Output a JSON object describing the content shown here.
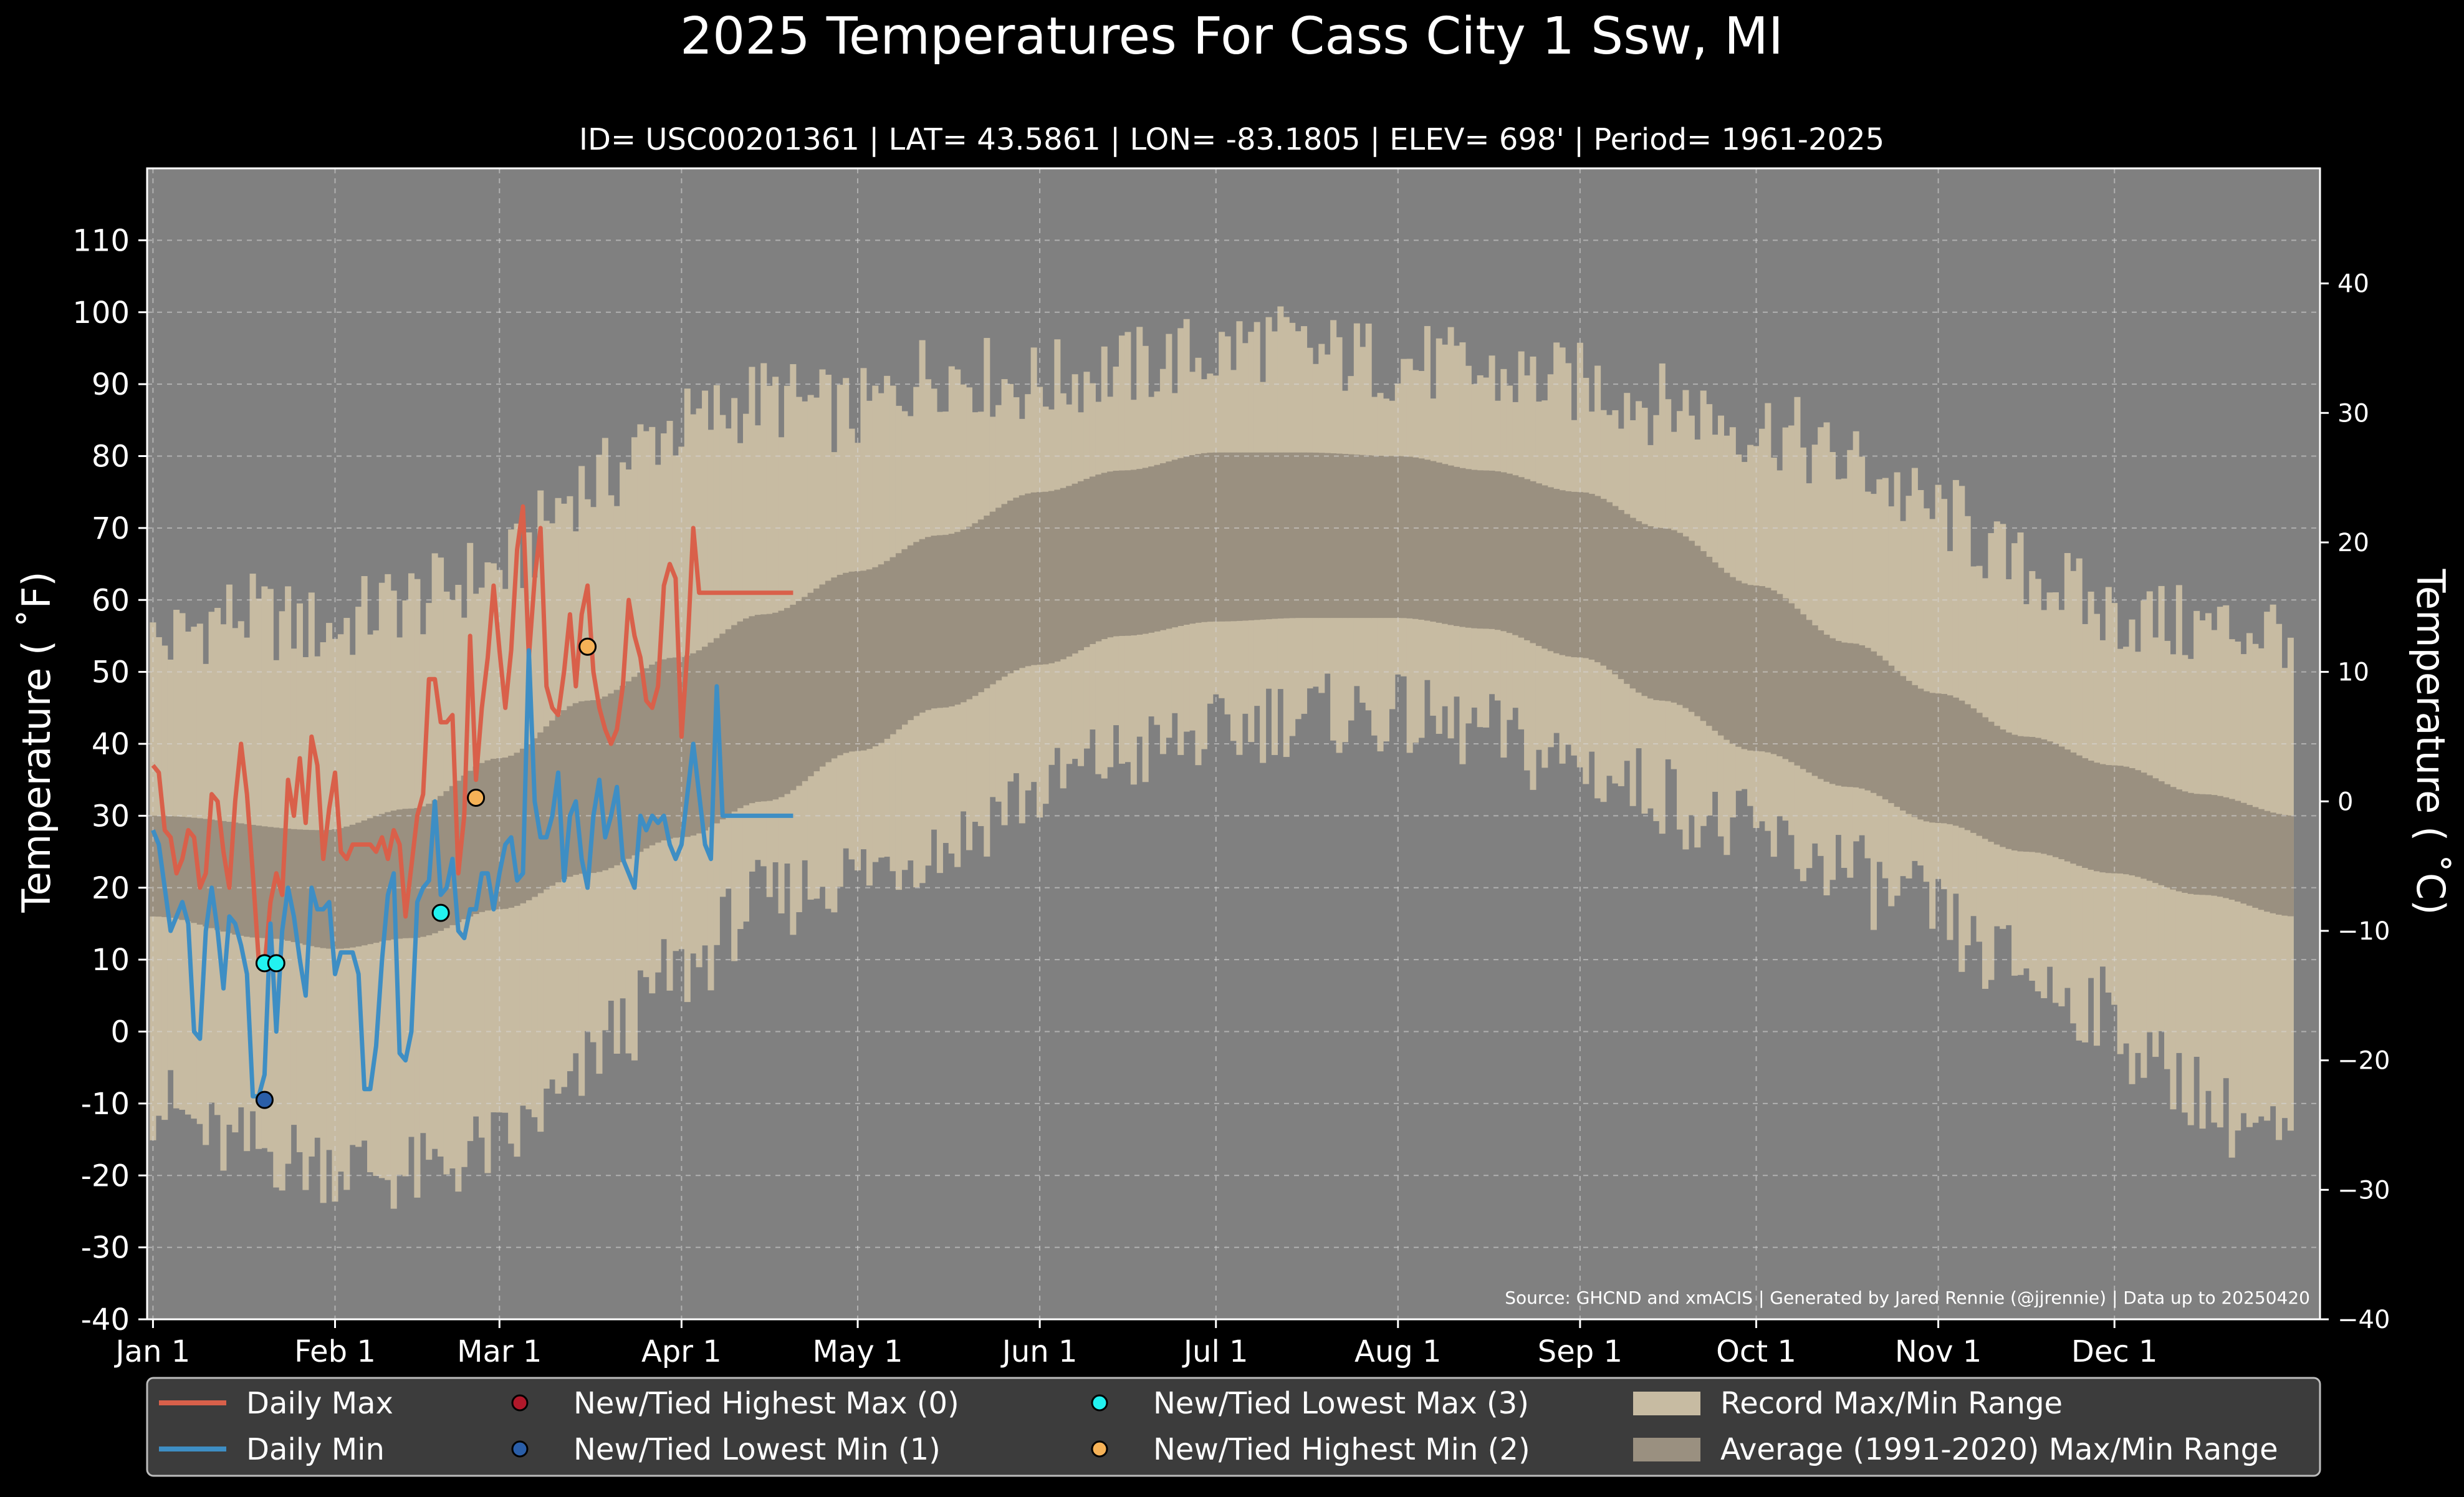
{
  "title": "2025 Temperatures For Cass City 1 Ssw, MI",
  "subtitle": "ID= USC00201361 | LAT= 43.5861 | LON= -83.1805 | ELEV= 698' | Period= 1961-2025",
  "source_note": "Source: GHCND and xmACIS | Generated by Jared Rennie (@jjrennie) | Data up to 20250420",
  "colors": {
    "background": "#000000",
    "plot_background": "#808080",
    "record_range": "#c7bba2",
    "average_range": "#9a9080",
    "daily_max": "#d9604a",
    "daily_min": "#3e8ec4",
    "highest_max": "#b0182a",
    "lowest_min": "#2a5ea8",
    "lowest_max": "#22f2f0",
    "highest_min": "#f6b257",
    "legend_bg": "#3c3c3c",
    "text": "#ffffff"
  },
  "chart_data": {
    "type": "line",
    "ylabel": "Temperature ( ˚F)",
    "ylabel_right": "Temperature ( ˚C)",
    "ylim": [
      -40,
      120
    ],
    "yticks": [
      "-40",
      "-30",
      "-20",
      "-10",
      "0",
      "10",
      "20",
      "30",
      "40",
      "50",
      "60",
      "70",
      "80",
      "90",
      "100",
      "110"
    ],
    "yticks_right": [
      "−40",
      "−30",
      "−20",
      "−10",
      "0",
      "10",
      "20",
      "30",
      "40"
    ],
    "xticks": [
      "Jan 1",
      "Feb 1",
      "Mar 1",
      "Apr 1",
      "May 1",
      "Jun 1",
      "Jul 1",
      "Aug 1",
      "Sep 1",
      "Oct 1",
      "Nov 1",
      "Dec 1"
    ],
    "xtick_days": [
      1,
      32,
      60,
      91,
      121,
      152,
      182,
      213,
      244,
      274,
      305,
      335
    ],
    "grid": true,
    "legend_position": "bottom",
    "legend": {
      "daily_max": "Daily Max",
      "daily_min": "Daily Min",
      "highest_max": "New/Tied Highest Max (0)",
      "lowest_min": "New/Tied Lowest Min (1)",
      "lowest_max": "New/Tied Lowest Max (3)",
      "highest_min": "New/Tied Highest Min (2)",
      "record_range": "Record Max/Min Range",
      "average_range": "Average (1991-2020) Max/Min Range"
    },
    "record_max_knots": [
      [
        1,
        54
      ],
      [
        15,
        58
      ],
      [
        30,
        56
      ],
      [
        45,
        60
      ],
      [
        60,
        64
      ],
      [
        75,
        76
      ],
      [
        90,
        84
      ],
      [
        105,
        88
      ],
      [
        120,
        86
      ],
      [
        135,
        92
      ],
      [
        150,
        90
      ],
      [
        165,
        92
      ],
      [
        180,
        94
      ],
      [
        190,
        96
      ],
      [
        200,
        94
      ],
      [
        215,
        93
      ],
      [
        230,
        91
      ],
      [
        245,
        90
      ],
      [
        260,
        87
      ],
      [
        275,
        84
      ],
      [
        290,
        79
      ],
      [
        305,
        72
      ],
      [
        320,
        64
      ],
      [
        335,
        58
      ],
      [
        350,
        56
      ],
      [
        366,
        56
      ]
    ],
    "record_min_knots": [
      [
        1,
        -10
      ],
      [
        15,
        -16
      ],
      [
        30,
        -18
      ],
      [
        45,
        -20
      ],
      [
        60,
        -16
      ],
      [
        70,
        -10
      ],
      [
        80,
        0
      ],
      [
        90,
        8
      ],
      [
        105,
        18
      ],
      [
        120,
        22
      ],
      [
        135,
        26
      ],
      [
        150,
        33
      ],
      [
        165,
        38
      ],
      [
        180,
        41
      ],
      [
        195,
        44
      ],
      [
        210,
        44
      ],
      [
        225,
        42
      ],
      [
        240,
        38
      ],
      [
        255,
        34
      ],
      [
        270,
        28
      ],
      [
        285,
        24
      ],
      [
        300,
        18
      ],
      [
        315,
        10
      ],
      [
        330,
        4
      ],
      [
        345,
        -6
      ],
      [
        355,
        -12
      ],
      [
        366,
        -16
      ]
    ],
    "avg_max_knots": [
      [
        1,
        30
      ],
      [
        30,
        28
      ],
      [
        45,
        31
      ],
      [
        60,
        38
      ],
      [
        75,
        46
      ],
      [
        90,
        52
      ],
      [
        105,
        58
      ],
      [
        121,
        64
      ],
      [
        135,
        69
      ],
      [
        152,
        75
      ],
      [
        166,
        78
      ],
      [
        182,
        80.5
      ],
      [
        197,
        80.5
      ],
      [
        213,
        80
      ],
      [
        228,
        78
      ],
      [
        244,
        75
      ],
      [
        258,
        70
      ],
      [
        274,
        62
      ],
      [
        290,
        54
      ],
      [
        305,
        47
      ],
      [
        320,
        41
      ],
      [
        335,
        37
      ],
      [
        350,
        33
      ],
      [
        366,
        30
      ]
    ],
    "avg_min_knots": [
      [
        1,
        16
      ],
      [
        20,
        13
      ],
      [
        32,
        11.5
      ],
      [
        45,
        13
      ],
      [
        60,
        17
      ],
      [
        75,
        22
      ],
      [
        91,
        27
      ],
      [
        105,
        32
      ],
      [
        121,
        39
      ],
      [
        135,
        45
      ],
      [
        152,
        51
      ],
      [
        166,
        55
      ],
      [
        182,
        57
      ],
      [
        197,
        57.5
      ],
      [
        213,
        57.5
      ],
      [
        228,
        56
      ],
      [
        244,
        52
      ],
      [
        258,
        46
      ],
      [
        274,
        39
      ],
      [
        290,
        34
      ],
      [
        305,
        29
      ],
      [
        320,
        25
      ],
      [
        335,
        22
      ],
      [
        350,
        19
      ],
      [
        366,
        16
      ]
    ],
    "series": [
      {
        "name": "Daily Max",
        "x": [
          1,
          2,
          3,
          4,
          5,
          6,
          7,
          8,
          9,
          10,
          11,
          12,
          13,
          14,
          15,
          16,
          17,
          18,
          19,
          20,
          21,
          22,
          23,
          24,
          25,
          26,
          27,
          28,
          29,
          30,
          31,
          32,
          33,
          34,
          35,
          36,
          37,
          38,
          39,
          40,
          41,
          42,
          43,
          44,
          45,
          46,
          47,
          48,
          49,
          50,
          51,
          52,
          53,
          54,
          55,
          56,
          57,
          58,
          59,
          60,
          61,
          62,
          63,
          64,
          65,
          66,
          67,
          68,
          69,
          70,
          71,
          72,
          73,
          74,
          75,
          76,
          77,
          78,
          79,
          80,
          81,
          82,
          83,
          84,
          85,
          86,
          87,
          88,
          89,
          90,
          91,
          92,
          93,
          94,
          95,
          96,
          97,
          98,
          99,
          100,
          101,
          102,
          103,
          104,
          105,
          106,
          107,
          108,
          109,
          110
        ],
        "values": [
          37,
          36,
          28,
          27,
          22,
          24,
          28,
          27,
          20,
          22,
          33,
          32,
          25,
          20,
          32,
          40,
          33,
          22,
          10,
          9,
          18,
          22,
          19,
          35,
          30,
          38,
          29,
          41,
          37,
          24,
          31,
          36,
          25,
          24,
          26,
          26,
          26,
          26,
          25,
          27,
          24,
          28,
          26,
          16,
          23,
          30,
          33,
          49,
          49,
          43,
          43,
          44,
          22,
          30,
          55,
          35,
          45,
          52,
          62,
          53,
          45,
          53,
          67,
          73,
          52,
          63,
          70,
          48,
          45,
          44,
          50,
          58,
          48,
          58,
          62,
          50,
          45,
          42,
          40,
          42,
          48,
          60,
          55,
          52,
          46,
          45,
          48,
          62,
          65,
          63,
          41,
          53,
          70,
          61,
          61,
          61,
          61,
          61,
          61,
          61,
          61,
          61,
          61,
          61,
          61,
          61,
          61,
          61,
          61,
          61
        ]
      },
      {
        "name": "Daily Min",
        "x": [
          1,
          2,
          3,
          4,
          5,
          6,
          7,
          8,
          9,
          10,
          11,
          12,
          13,
          14,
          15,
          16,
          17,
          18,
          19,
          20,
          21,
          22,
          23,
          24,
          25,
          26,
          27,
          28,
          29,
          30,
          31,
          32,
          33,
          34,
          35,
          36,
          37,
          38,
          39,
          40,
          41,
          42,
          43,
          44,
          45,
          46,
          47,
          48,
          49,
          50,
          51,
          52,
          53,
          54,
          55,
          56,
          57,
          58,
          59,
          60,
          61,
          62,
          63,
          64,
          65,
          66,
          67,
          68,
          69,
          70,
          71,
          72,
          73,
          74,
          75,
          76,
          77,
          78,
          79,
          80,
          81,
          82,
          83,
          84,
          85,
          86,
          87,
          88,
          89,
          90,
          91,
          92,
          93,
          94,
          95,
          96,
          97,
          98,
          99,
          100,
          101,
          102,
          103,
          104,
          105,
          106,
          107,
          108,
          109,
          110
        ],
        "values": [
          28,
          26,
          20,
          14,
          16,
          18,
          15,
          0,
          -1,
          14,
          20,
          14,
          6,
          16,
          15,
          12,
          8,
          -9,
          -9,
          -6,
          15,
          0,
          14,
          20,
          16,
          10,
          5,
          20,
          17,
          17,
          18,
          8,
          11,
          11,
          11,
          8,
          -8,
          -8,
          -2,
          10,
          19,
          22,
          -3,
          -4,
          0,
          18,
          20,
          21,
          32,
          19,
          20,
          24,
          14,
          13,
          17,
          17,
          22,
          22,
          17,
          22,
          26,
          27,
          21,
          22,
          53,
          32,
          27,
          27,
          30,
          36,
          21,
          30,
          32,
          24,
          20,
          30,
          35,
          27,
          30,
          34,
          24,
          22,
          20,
          30,
          28,
          30,
          29,
          30,
          26,
          24,
          26,
          33,
          40,
          33,
          26,
          24,
          48,
          30,
          30,
          30,
          30,
          30,
          30,
          30,
          30,
          30,
          30,
          30,
          30,
          30
        ]
      }
    ],
    "markers": [
      {
        "series": "lowest_min",
        "x": 20,
        "y": -9.5
      },
      {
        "series": "lowest_max",
        "x": 20,
        "y": 9.5
      },
      {
        "series": "lowest_max",
        "x": 22,
        "y": 9.5
      },
      {
        "series": "lowest_max",
        "x": 50,
        "y": 16.5
      },
      {
        "series": "highest_min",
        "x": 56,
        "y": 32.5
      },
      {
        "series": "highest_min",
        "x": 75,
        "y": 53.5
      }
    ]
  }
}
